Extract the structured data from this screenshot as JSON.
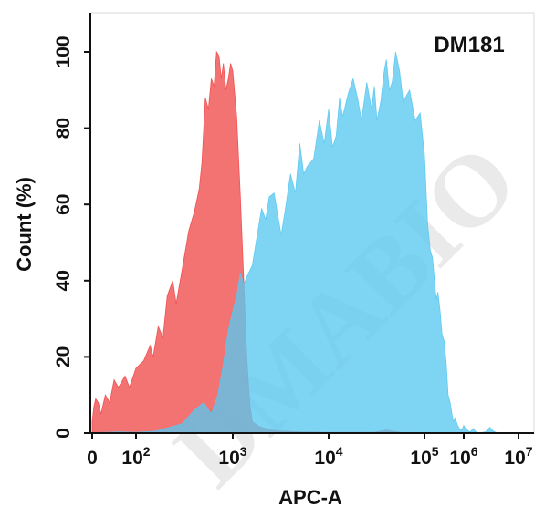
{
  "watermark": "DMABIO",
  "chart_data": {
    "type": "area",
    "title": "DM181",
    "xlabel": "APC-A",
    "ylabel": "Count  (%)",
    "x_scale": "biexponential",
    "xlim": [
      0,
      10000000
    ],
    "ylim": [
      0,
      105
    ],
    "x_ticks": [
      {
        "base": "0",
        "exp": "",
        "value": 0
      },
      {
        "base": "10",
        "exp": "2",
        "value": 100
      },
      {
        "base": "10",
        "exp": "3",
        "value": 1000
      },
      {
        "base": "10",
        "exp": "4",
        "value": 10000
      },
      {
        "base": "10",
        "exp": "5",
        "value": 100000
      },
      {
        "base": "10",
        "exp": "6",
        "value": 1000000
      },
      {
        "base": "10",
        "exp": "7",
        "value": 10000000
      }
    ],
    "y_ticks": [
      "0",
      "20",
      "40",
      "60",
      "80",
      "100"
    ],
    "grid": false,
    "series": [
      {
        "color": "#f04a4a",
        "opacity": 0.78,
        "points": [
          [
            0,
            3
          ],
          [
            4,
            7
          ],
          [
            8,
            9
          ],
          [
            14,
            8
          ],
          [
            20,
            5
          ],
          [
            30,
            10
          ],
          [
            40,
            8
          ],
          [
            50,
            14
          ],
          [
            60,
            12
          ],
          [
            75,
            15
          ],
          [
            85,
            12
          ],
          [
            100,
            17
          ],
          [
            120,
            19
          ],
          [
            140,
            23
          ],
          [
            150,
            20
          ],
          [
            170,
            28
          ],
          [
            190,
            25
          ],
          [
            210,
            36
          ],
          [
            240,
            40
          ],
          [
            260,
            34
          ],
          [
            300,
            43
          ],
          [
            350,
            53
          ],
          [
            400,
            58
          ],
          [
            450,
            64
          ],
          [
            480,
            71
          ],
          [
            520,
            88
          ],
          [
            560,
            85
          ],
          [
            600,
            93
          ],
          [
            640,
            91
          ],
          [
            680,
            100
          ],
          [
            720,
            99
          ],
          [
            760,
            93
          ],
          [
            800,
            97
          ],
          [
            850,
            90
          ],
          [
            900,
            93
          ],
          [
            950,
            97
          ],
          [
            1000,
            95
          ],
          [
            1100,
            83
          ],
          [
            1200,
            62
          ],
          [
            1300,
            40
          ],
          [
            1400,
            20
          ],
          [
            1500,
            8
          ],
          [
            1600,
            3
          ],
          [
            1800,
            2
          ],
          [
            2000,
            1.5
          ],
          [
            2500,
            0.8
          ],
          [
            3000,
            0.6
          ],
          [
            5000,
            0.3
          ],
          [
            10000,
            0.2
          ],
          [
            30000,
            0.2
          ],
          [
            40000,
            0.8
          ],
          [
            45000,
            0.6
          ],
          [
            60000,
            0.1
          ],
          [
            100000,
            0.1
          ]
        ]
      },
      {
        "color": "#5ac8ef",
        "opacity": 0.78,
        "points": [
          [
            0,
            0.1
          ],
          [
            60,
            0.3
          ],
          [
            100,
            0.2
          ],
          [
            160,
            0.5
          ],
          [
            220,
            1.5
          ],
          [
            300,
            2.5
          ],
          [
            400,
            6
          ],
          [
            500,
            8
          ],
          [
            600,
            5
          ],
          [
            700,
            10
          ],
          [
            800,
            18
          ],
          [
            900,
            27
          ],
          [
            1000,
            32
          ],
          [
            1100,
            36
          ],
          [
            1200,
            42
          ],
          [
            1300,
            39
          ],
          [
            1400,
            41
          ],
          [
            1600,
            44
          ],
          [
            1800,
            52
          ],
          [
            2000,
            59
          ],
          [
            2200,
            56
          ],
          [
            2400,
            62
          ],
          [
            2700,
            63
          ],
          [
            3000,
            56
          ],
          [
            3200,
            52
          ],
          [
            3500,
            58
          ],
          [
            4000,
            68
          ],
          [
            4500,
            63
          ],
          [
            5000,
            76
          ],
          [
            5500,
            68
          ],
          [
            6000,
            70
          ],
          [
            7000,
            72
          ],
          [
            8000,
            82
          ],
          [
            9000,
            76
          ],
          [
            10000,
            85
          ],
          [
            11000,
            75
          ],
          [
            12000,
            78
          ],
          [
            13000,
            88
          ],
          [
            14000,
            83
          ],
          [
            16000,
            89
          ],
          [
            18000,
            93
          ],
          [
            20000,
            88
          ],
          [
            22000,
            82
          ],
          [
            25000,
            92
          ],
          [
            28000,
            85
          ],
          [
            30000,
            91
          ],
          [
            32000,
            82
          ],
          [
            35000,
            87
          ],
          [
            38000,
            95
          ],
          [
            40000,
            98
          ],
          [
            43000,
            90
          ],
          [
            46000,
            92
          ],
          [
            50000,
            100
          ],
          [
            55000,
            95
          ],
          [
            60000,
            87
          ],
          [
            70000,
            90
          ],
          [
            80000,
            82
          ],
          [
            90000,
            84
          ],
          [
            100000,
            73
          ],
          [
            120000,
            55
          ],
          [
            140000,
            48
          ],
          [
            160000,
            46
          ],
          [
            180000,
            40
          ],
          [
            200000,
            35
          ],
          [
            220000,
            37
          ],
          [
            250000,
            32
          ],
          [
            280000,
            26
          ],
          [
            320000,
            24
          ],
          [
            360000,
            18
          ],
          [
            400000,
            10
          ],
          [
            450000,
            8
          ],
          [
            500000,
            5
          ],
          [
            550000,
            3
          ],
          [
            600000,
            4
          ],
          [
            700000,
            2
          ],
          [
            800000,
            1
          ],
          [
            900000,
            0.8
          ],
          [
            1000000,
            2
          ],
          [
            1100000,
            1
          ],
          [
            1300000,
            0.3
          ],
          [
            1500000,
            1.2
          ],
          [
            1700000,
            0.2
          ],
          [
            2000000,
            0.1
          ],
          [
            2500000,
            0.3
          ],
          [
            3000000,
            1.5
          ],
          [
            3500000,
            0.5
          ],
          [
            4000000,
            0.1
          ]
        ]
      }
    ]
  }
}
